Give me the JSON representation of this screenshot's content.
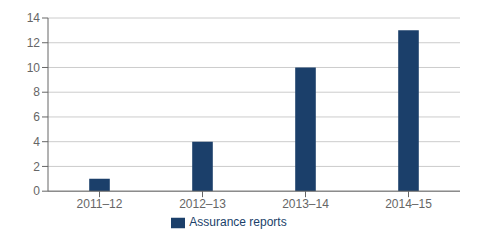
{
  "chart_data": {
    "type": "bar",
    "categories": [
      "2011–12",
      "2012–13",
      "2013–14",
      "2014–15"
    ],
    "series": [
      {
        "name": "Assurance reports",
        "color": "#1b3f6a",
        "values": [
          1,
          4,
          10,
          13
        ]
      }
    ],
    "ylim": [
      0,
      14
    ],
    "yticks": [
      0,
      2,
      4,
      6,
      8,
      10,
      12,
      14
    ],
    "grid": true,
    "legend": "bottom"
  }
}
